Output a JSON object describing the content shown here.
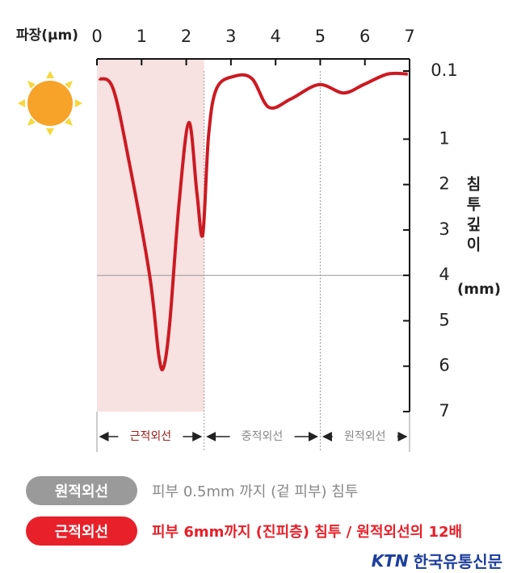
{
  "chart_data": {
    "type": "line",
    "x_label": "파장(µm)",
    "y_label": "침투깊이",
    "y_unit": "(mm)",
    "xlim": [
      0,
      7
    ],
    "xticks": [
      0,
      1,
      2,
      3,
      4,
      5,
      6,
      7
    ],
    "ylim": [
      0.1,
      7
    ],
    "yticks": [
      0.1,
      1,
      2,
      3,
      4,
      5,
      6,
      7
    ],
    "color": "#cc1a22",
    "reference_line": 4,
    "x": [
      0.05,
      0.36,
      0.72,
      1.18,
      1.39,
      1.5,
      1.63,
      1.84,
      2.06,
      2.24,
      2.37,
      2.5,
      2.68,
      3.07,
      3.47,
      3.85,
      4.34,
      4.97,
      5.52,
      5.97,
      6.51,
      6.96
    ],
    "values": [
      0.2,
      0.33,
      1.5,
      4,
      5.8,
      6,
      5.05,
      2.4,
      0.78,
      2.2,
      3.1,
      0.95,
      0.33,
      0.17,
      0.2,
      0.58,
      0.47,
      0.28,
      0.39,
      0.28,
      0.14,
      0.14
    ],
    "bands": [
      {
        "label": "근적외선",
        "range": [
          0,
          2.4
        ]
      },
      {
        "label": "중적외선",
        "range": [
          2.4,
          5
        ]
      },
      {
        "label": "원적외선",
        "range": [
          5,
          7
        ]
      }
    ]
  },
  "legend": [
    {
      "badge": "원적외선",
      "text": "피부 0.5mm 까지 (겉 피부) 침투"
    },
    {
      "badge": "근적외선",
      "text": "피부 6mm까지 (진피층) 침투 / 원적외선의 12배"
    }
  ],
  "logo": {
    "mark": "KTN",
    "name": "한국유통신문"
  }
}
